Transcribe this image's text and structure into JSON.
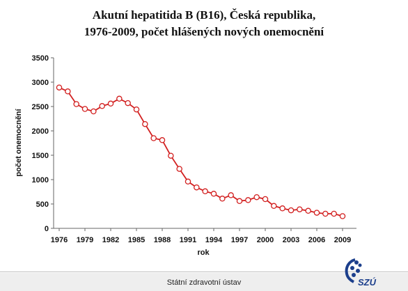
{
  "chart_data": {
    "type": "line",
    "title": [
      "Akutní hepatitida B (B16), Česká republika,",
      "1976-2009, počet hlášených nových onemocnění"
    ],
    "xlabel": "rok",
    "ylabel": "počet onemocnění",
    "ylim": [
      0,
      3500
    ],
    "xlim": [
      1976,
      2009
    ],
    "yticks": [
      0,
      500,
      1000,
      1500,
      2000,
      2500,
      3000,
      3500
    ],
    "xticks": [
      1976,
      1979,
      1982,
      1985,
      1988,
      1991,
      1994,
      1997,
      2000,
      2003,
      2006,
      2009
    ],
    "grid": false,
    "legend": "none",
    "line_color": "#d21f1f",
    "marker_fill": "#ffffff",
    "series": [
      {
        "x": [
          1976,
          1977,
          1978,
          1979,
          1980,
          1981,
          1982,
          1983,
          1984,
          1985,
          1986,
          1987,
          1988,
          1989,
          1990,
          1991,
          1992,
          1993,
          1994,
          1995,
          1996,
          1997,
          1998,
          1999,
          2000,
          2001,
          2002,
          2003,
          2004,
          2005,
          2006,
          2007,
          2008,
          2009
        ],
        "values": [
          2890,
          2810,
          2550,
          2450,
          2400,
          2510,
          2560,
          2660,
          2570,
          2440,
          2140,
          1850,
          1810,
          1490,
          1220,
          960,
          840,
          760,
          710,
          610,
          680,
          560,
          580,
          640,
          600,
          460,
          410,
          370,
          390,
          360,
          320,
          300,
          300,
          250
        ]
      }
    ]
  },
  "footer": {
    "institution": "Státní zdravotní ústav",
    "logo_text": "SZÚ"
  }
}
